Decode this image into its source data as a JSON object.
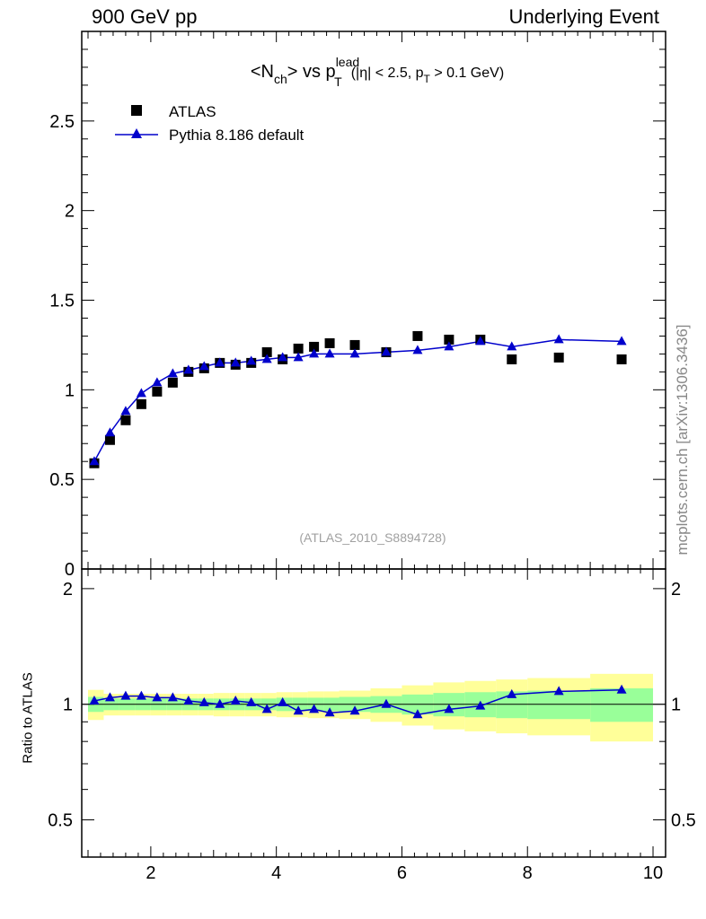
{
  "header": {
    "left": "900 GeV pp",
    "right": "Underlying Event"
  },
  "side_credit": "mcplots.cern.ch [arXiv:1306.3436]",
  "chart_data": [
    {
      "type": "scatter",
      "title": {
        "n_ch": "<N",
        "n_ch_sub": "ch",
        "vs": "> vs p",
        "p_sup": "lead",
        "p_sub": "T",
        "cuts_a": "(|η| < 2.5, p",
        "cuts_sub": "T",
        "cuts_b": " > 0.1 GeV)"
      },
      "watermark": "(ATLAS_2010_S8894728)",
      "xlim": [
        0.9,
        10.2
      ],
      "ylim": [
        0,
        3.0
      ],
      "yticks": [
        0,
        0.5,
        1,
        1.5,
        2,
        2.5
      ],
      "ytick_labels": [
        "0",
        "0.5",
        "1",
        "1.5",
        "2",
        "2.5"
      ],
      "legend": "top-left",
      "series": [
        {
          "name": "ATLAS",
          "marker": "square",
          "color": "#000000",
          "x": [
            1.1,
            1.35,
            1.6,
            1.85,
            2.1,
            2.35,
            2.6,
            2.85,
            3.1,
            3.35,
            3.6,
            3.85,
            4.1,
            4.35,
            4.6,
            4.85,
            5.25,
            5.75,
            6.25,
            6.75,
            7.25,
            7.75,
            8.5,
            9.5
          ],
          "y": [
            0.59,
            0.72,
            0.83,
            0.92,
            0.99,
            1.04,
            1.1,
            1.12,
            1.15,
            1.14,
            1.15,
            1.21,
            1.17,
            1.23,
            1.24,
            1.26,
            1.25,
            1.21,
            1.3,
            1.28,
            1.28,
            1.17,
            1.18,
            1.17
          ]
        },
        {
          "name": "Pythia 8.186 default",
          "marker": "triangle",
          "color": "#0000cc",
          "x": [
            1.1,
            1.35,
            1.6,
            1.85,
            2.1,
            2.35,
            2.6,
            2.85,
            3.1,
            3.35,
            3.6,
            3.85,
            4.1,
            4.35,
            4.6,
            4.85,
            5.25,
            5.75,
            6.25,
            6.75,
            7.25,
            7.75,
            8.5,
            9.5
          ],
          "y": [
            0.6,
            0.76,
            0.88,
            0.98,
            1.04,
            1.09,
            1.11,
            1.13,
            1.15,
            1.15,
            1.16,
            1.17,
            1.18,
            1.18,
            1.2,
            1.2,
            1.2,
            1.21,
            1.22,
            1.24,
            1.27,
            1.24,
            1.28,
            1.27
          ]
        }
      ]
    },
    {
      "type": "scatter",
      "ylabel": "Ratio to ATLAS",
      "xlim": [
        0.9,
        10.2
      ],
      "ylim": [
        0.4,
        2.25
      ],
      "xticks": [
        2,
        4,
        6,
        8,
        10
      ],
      "xtick_labels": [
        "2",
        "4",
        "6",
        "8",
        "10"
      ],
      "yticks": [
        0.5,
        1,
        2
      ],
      "ytick_labels": [
        "0.5",
        "1",
        "2"
      ],
      "reference_line": 1,
      "bands": {
        "x_edges": [
          1.0,
          1.25,
          1.5,
          1.75,
          2.0,
          2.25,
          2.5,
          2.75,
          3.0,
          3.25,
          3.5,
          3.75,
          4.0,
          4.25,
          4.5,
          4.75,
          5.0,
          5.5,
          6.0,
          6.5,
          7.0,
          7.5,
          8.0,
          9.0,
          10.0
        ],
        "green_color": "#99ff99",
        "yellow_color": "#ffff99",
        "green_halfwidth": [
          0.045,
          0.035,
          0.035,
          0.035,
          0.035,
          0.035,
          0.035,
          0.035,
          0.035,
          0.035,
          0.035,
          0.035,
          0.04,
          0.04,
          0.04,
          0.04,
          0.045,
          0.05,
          0.06,
          0.07,
          0.075,
          0.08,
          0.085,
          0.1
        ],
        "yellow_halfwidth": [
          0.09,
          0.065,
          0.065,
          0.065,
          0.065,
          0.065,
          0.065,
          0.065,
          0.07,
          0.07,
          0.07,
          0.07,
          0.075,
          0.075,
          0.08,
          0.08,
          0.085,
          0.1,
          0.12,
          0.14,
          0.15,
          0.16,
          0.17,
          0.2
        ]
      },
      "series": [
        {
          "name": "Pythia 8.186 default",
          "marker": "triangle",
          "color": "#0000cc",
          "x": [
            1.1,
            1.35,
            1.6,
            1.85,
            2.1,
            2.35,
            2.6,
            2.85,
            3.1,
            3.35,
            3.6,
            3.85,
            4.1,
            4.35,
            4.6,
            4.85,
            5.25,
            5.75,
            6.25,
            6.75,
            7.25,
            7.75,
            8.5,
            9.5
          ],
          "y": [
            1.02,
            1.04,
            1.05,
            1.05,
            1.04,
            1.04,
            1.02,
            1.01,
            1.0,
            1.02,
            1.01,
            0.97,
            1.01,
            0.96,
            0.97,
            0.95,
            0.96,
            1.0,
            0.94,
            0.97,
            0.99,
            1.06,
            1.08,
            1.09
          ]
        }
      ]
    }
  ]
}
